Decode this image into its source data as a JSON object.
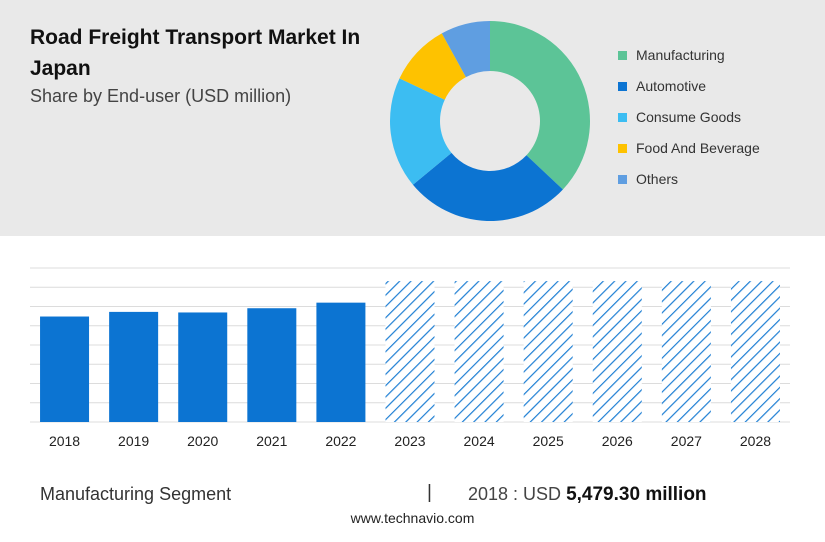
{
  "header": {
    "title": "Road Freight Transport Market In Japan",
    "subtitle": "Share by End-user (USD million)"
  },
  "chart_data": [
    {
      "type": "pie",
      "variant": "donut",
      "slices": [
        {
          "label": "Manufacturing",
          "value": 37,
          "color": "#5cc497"
        },
        {
          "label": "Automotive",
          "value": 27,
          "color": "#0c74d2"
        },
        {
          "label": "Consume Goods",
          "value": 18,
          "color": "#3cbdf2"
        },
        {
          "label": "Food And Beverage",
          "value": 10,
          "color": "#fec200"
        },
        {
          "label": "Others",
          "value": 8,
          "color": "#5f9ee1"
        }
      ],
      "legend_position": "right"
    },
    {
      "type": "bar",
      "categories": [
        "2018",
        "2019",
        "2020",
        "2021",
        "2022",
        "2023",
        "2024",
        "2025",
        "2026",
        "2027",
        "2028"
      ],
      "values": [
        5479.3,
        5720,
        5690,
        5910,
        6200,
        7320,
        7320,
        7320,
        7320,
        7320,
        7320
      ],
      "forecast_from": "2023",
      "ylim": [
        0,
        8000
      ],
      "grid": true,
      "bar_color": "#0c74d2",
      "forecast_color": "#0c74d2"
    }
  ],
  "footer": {
    "segment_label": "Manufacturing Segment",
    "divider": "|",
    "value_prefix": "2018 : USD",
    "value_amount": "5,479.30 million",
    "source": "www.technavio.com"
  }
}
